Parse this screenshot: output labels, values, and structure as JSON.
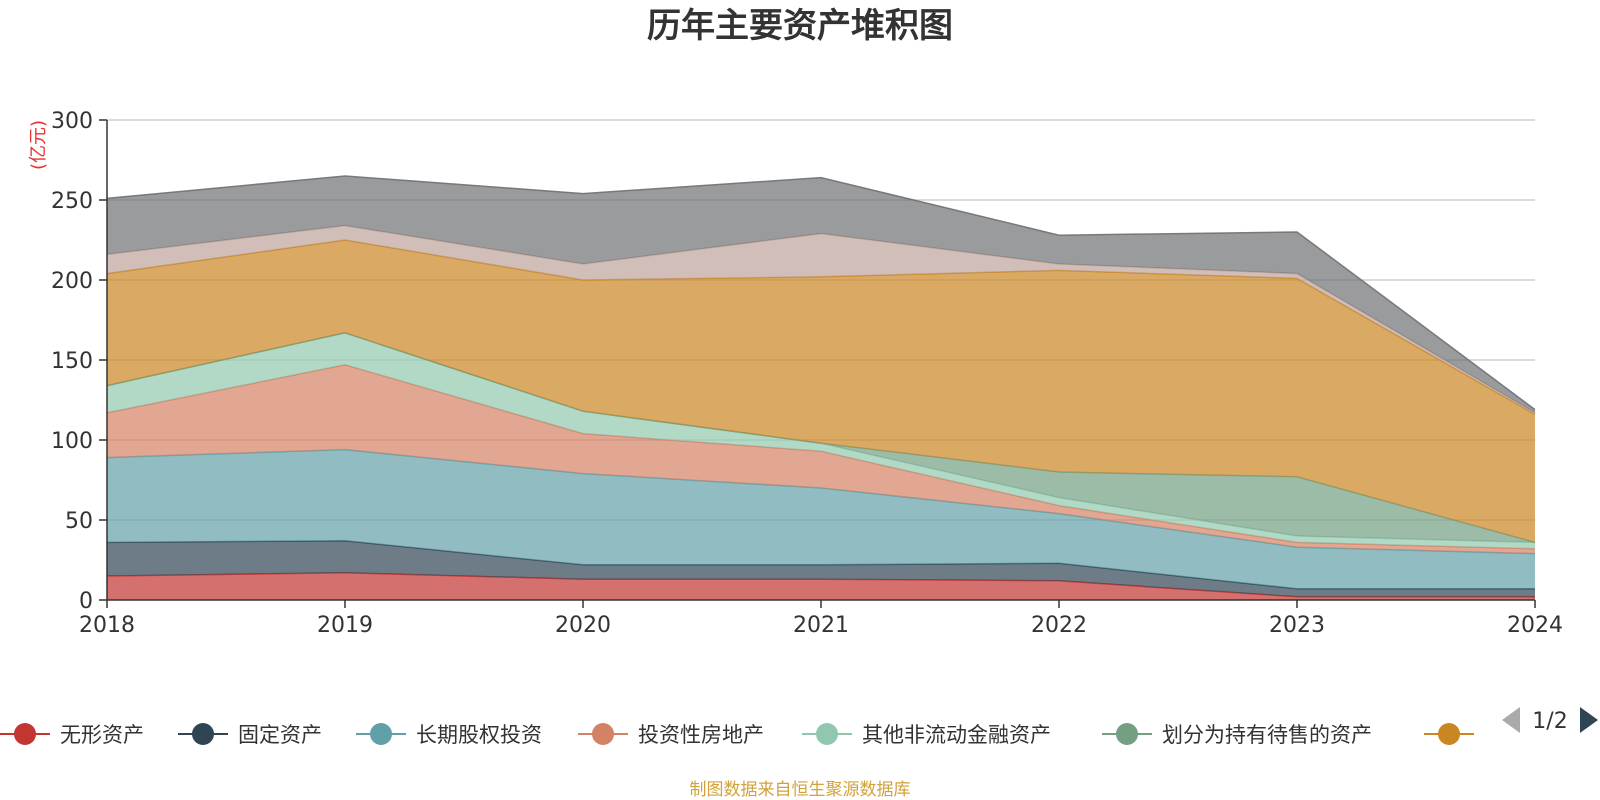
{
  "chart_data": {
    "type": "area",
    "stacked": true,
    "title": "历年主要资产堆积图",
    "unit_label": "(亿元)",
    "x": [
      "2018",
      "2019",
      "2020",
      "2021",
      "2022",
      "2023",
      "2024"
    ],
    "ylim": [
      0,
      300
    ],
    "yticks": [
      "0",
      "50",
      "100",
      "150",
      "200",
      "250",
      "300"
    ],
    "grid": true,
    "series": [
      {
        "name": "无形资产",
        "color": "#c23531",
        "values": [
          15,
          17,
          13,
          13,
          12,
          2,
          2
        ]
      },
      {
        "name": "固定资产",
        "color": "#2f4554",
        "values": [
          21,
          20,
          9,
          9,
          11,
          5,
          5
        ]
      },
      {
        "name": "长期股权投资",
        "color": "#61a0a8",
        "values": [
          53,
          57,
          57,
          48,
          31,
          26,
          22
        ]
      },
      {
        "name": "投资性房地产",
        "color": "#d48265",
        "values": [
          28,
          53,
          25,
          23,
          5,
          3,
          3
        ]
      },
      {
        "name": "其他非流动金融资产",
        "color": "#91c7ae",
        "values": [
          17,
          20,
          14,
          5,
          5,
          4,
          4
        ]
      },
      {
        "name": "划分为持有待售的资产",
        "color": "#749f83",
        "values": [
          0,
          0,
          0,
          0,
          16,
          37,
          0
        ]
      },
      {
        "color": "#ca8622",
        "values": [
          70,
          58,
          82,
          104,
          126,
          124,
          80
        ]
      },
      {
        "color": "#bda29a",
        "values": [
          12,
          9,
          10,
          27,
          4,
          3,
          1
        ]
      },
      {
        "color": "#6e7074",
        "values": [
          35,
          31,
          44,
          35,
          18,
          26,
          2
        ]
      }
    ]
  },
  "legend": {
    "items": [
      {
        "label": "无形资产",
        "color": "#c23531"
      },
      {
        "label": "固定资产",
        "color": "#2f4554"
      },
      {
        "label": "长期股权投资",
        "color": "#61a0a8"
      },
      {
        "label": "投资性房地产",
        "color": "#d48265"
      },
      {
        "label": "其他非流动金融资产",
        "color": "#91c7ae"
      },
      {
        "label": "划分为持有待售的资产",
        "color": "#749f83"
      },
      {
        "label": "",
        "color": "#ca8622"
      }
    ],
    "page_indicator": "1/2",
    "prev_color": "#aaaaaa",
    "next_color": "#2f4554"
  },
  "source_note": "制图数据来自恒生聚源数据库"
}
